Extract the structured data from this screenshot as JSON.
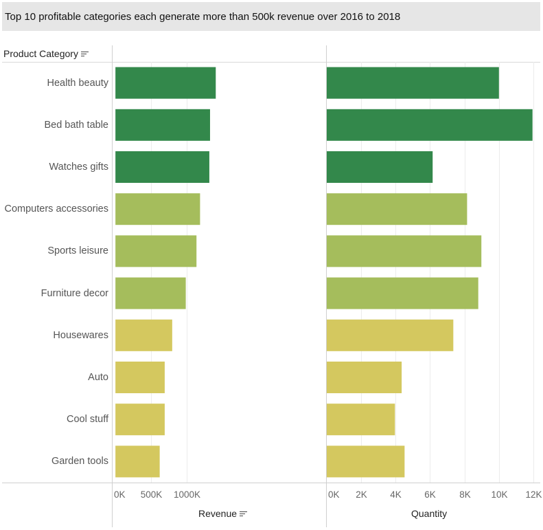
{
  "title": "Top 10 profitable categories each generate more than 500k revenue over 2016 to 2018",
  "row_header": "Product Category",
  "colors": {
    "dark_green": "#33884b",
    "light_green": "#a5bd5c",
    "yellow": "#d4c85f"
  },
  "chart_data": [
    {
      "type": "bar",
      "orientation": "horizontal",
      "categories": [
        "Health beauty",
        "Bed bath table",
        "Watches gifts",
        "Computers accessories",
        "Sports leisure",
        "Furniture decor",
        "Housewares",
        "Auto",
        "Cool stuff",
        "Garden tools"
      ],
      "values": [
        1405000,
        1325000,
        1315000,
        1185000,
        1135000,
        985000,
        795000,
        690000,
        690000,
        620000
      ],
      "color_groups": [
        "dark_green",
        "dark_green",
        "dark_green",
        "light_green",
        "light_green",
        "light_green",
        "yellow",
        "yellow",
        "yellow",
        "yellow"
      ],
      "xlabel": "Revenue",
      "xlim": [
        -40000,
        2950000
      ],
      "xticks": [
        0,
        500000,
        1000000
      ],
      "xtick_labels": [
        "0K",
        "500K",
        "1000K"
      ],
      "grid": true
    },
    {
      "type": "bar",
      "orientation": "horizontal",
      "categories": [
        "Health beauty",
        "Bed bath table",
        "Watches gifts",
        "Computers accessories",
        "Sports leisure",
        "Furniture decor",
        "Housewares",
        "Auto",
        "Cool stuff",
        "Garden tools"
      ],
      "values": [
        10000,
        11950,
        6150,
        8150,
        8980,
        8800,
        7350,
        4350,
        3960,
        4520
      ],
      "color_groups": [
        "dark_green",
        "dark_green",
        "dark_green",
        "light_green",
        "light_green",
        "light_green",
        "yellow",
        "yellow",
        "yellow",
        "yellow"
      ],
      "xlabel": "Quantity",
      "xlim": [
        0,
        12400
      ],
      "xticks": [
        0,
        2000,
        4000,
        6000,
        8000,
        10000,
        12000
      ],
      "xtick_labels": [
        "0K",
        "2K",
        "4K",
        "6K",
        "8K",
        "10K",
        "12K"
      ],
      "grid": true
    }
  ]
}
